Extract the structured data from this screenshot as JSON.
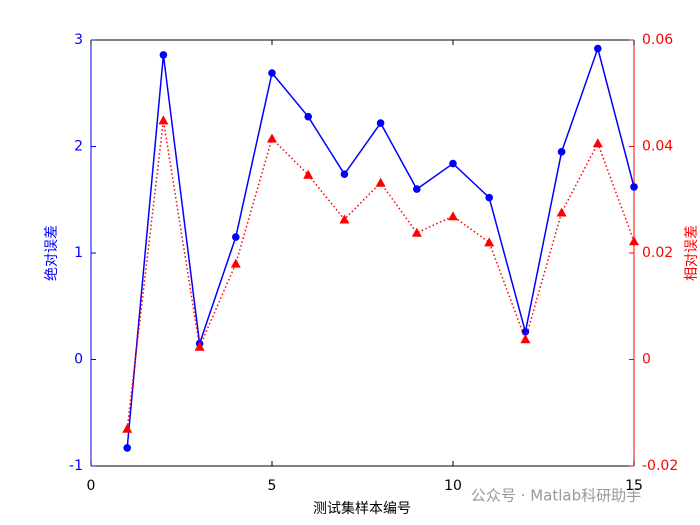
{
  "chart_data": {
    "type": "line",
    "x_label": "测试集样本编号",
    "y_label": "绝对误差",
    "y2_label": "相对误差",
    "watermark": "公众号 · Matlab科研助手",
    "xlim": [
      0,
      15
    ],
    "xticks": [
      0,
      5,
      10,
      15
    ],
    "ylim": [
      -1,
      3
    ],
    "yticks": [
      -1,
      0,
      1,
      2,
      3
    ],
    "y2lim": [
      -0.02,
      0.06
    ],
    "y2ticks": [
      -0.02,
      0,
      0.02,
      0.04,
      0.06
    ],
    "y_color": "#0000ff",
    "y2_color": "#ff0000",
    "series": [
      {
        "color": "#0000ff",
        "line_style": "solid",
        "marker": "circle",
        "axis": "y",
        "x": [
          1,
          2,
          3,
          4,
          5,
          6,
          7,
          8,
          9,
          10,
          11,
          12,
          13,
          14,
          15
        ],
        "values": [
          -0.83,
          2.86,
          0.15,
          1.15,
          2.69,
          2.28,
          1.74,
          2.22,
          1.6,
          1.84,
          1.52,
          0.26,
          1.95,
          2.92,
          1.62
        ]
      },
      {
        "color": "#ff0000",
        "line_style": "dotted",
        "marker": "triangle",
        "axis": "y2",
        "x": [
          1,
          2,
          3,
          4,
          5,
          6,
          7,
          8,
          9,
          10,
          11,
          12,
          13,
          14,
          15
        ],
        "values": [
          -0.013,
          0.0449,
          0.0024,
          0.018,
          0.0415,
          0.0347,
          0.0263,
          0.0332,
          0.0238,
          0.0269,
          0.022,
          0.0038,
          0.0276,
          0.0406,
          0.0222
        ]
      }
    ]
  }
}
